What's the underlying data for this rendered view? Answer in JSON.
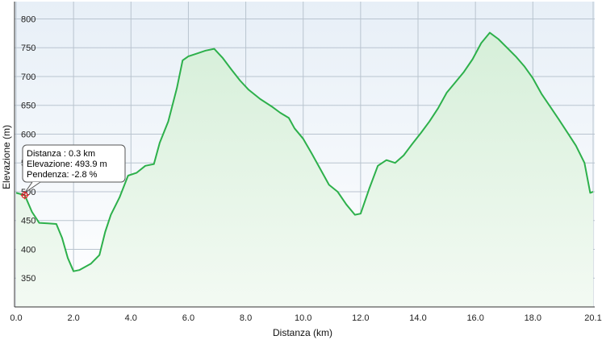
{
  "chart_data": {
    "type": "area",
    "xlabel": "Distanza  (km)",
    "ylabel": "Elevazione (m)",
    "xlim": [
      0,
      20.1
    ],
    "ylim": [
      300,
      830
    ],
    "x_ticks": [
      0.0,
      2.0,
      4.0,
      6.0,
      8.0,
      10.0,
      12.0,
      14.0,
      16.0,
      18.0,
      20.1
    ],
    "x_tick_labels": [
      "0.0",
      "2.0",
      "4.0",
      "6.0",
      "8.0",
      "10.0",
      "12.0",
      "14.0",
      "16.0",
      "18.0",
      "20.1"
    ],
    "y_ticks": [
      350,
      400,
      450,
      500,
      550,
      600,
      650,
      700,
      750,
      800
    ],
    "y_tick_labels": [
      "350",
      "400",
      "450",
      "500",
      "550",
      "600",
      "650",
      "700",
      "750",
      "800"
    ],
    "grid": true,
    "line_color": "#2db04b",
    "series": [
      {
        "x": [
          0.0,
          0.3,
          0.55,
          0.8,
          1.1,
          1.4,
          1.6,
          1.8,
          2.0,
          2.2,
          2.6,
          2.9,
          3.1,
          3.3,
          3.6,
          3.9,
          4.2,
          4.5,
          4.8,
          5.0,
          5.3,
          5.6,
          5.8,
          6.0,
          6.3,
          6.6,
          6.9,
          7.2,
          7.5,
          7.8,
          8.1,
          8.5,
          8.9,
          9.2,
          9.5,
          9.7,
          10.0,
          10.3,
          10.6,
          10.9,
          11.2,
          11.5,
          11.8,
          12.0,
          12.3,
          12.6,
          12.9,
          13.2,
          13.5,
          13.8,
          14.1,
          14.4,
          14.7,
          15.0,
          15.3,
          15.6,
          15.9,
          16.2,
          16.5,
          16.8,
          17.1,
          17.4,
          17.7,
          18.0,
          18.3,
          18.6,
          18.9,
          19.2,
          19.5,
          19.8,
          20.0,
          20.1
        ],
        "y": [
          498,
          493.9,
          465,
          446,
          445,
          444,
          420,
          385,
          362,
          364,
          375,
          390,
          430,
          460,
          490,
          528,
          533,
          545,
          548,
          585,
          622,
          680,
          728,
          735,
          740,
          745,
          748,
          732,
          712,
          693,
          677,
          661,
          648,
          637,
          628,
          610,
          592,
          566,
          539,
          512,
          500,
          478,
          460,
          462,
          505,
          545,
          555,
          550,
          563,
          583,
          602,
          622,
          645,
          672,
          690,
          708,
          730,
          758,
          776,
          765,
          750,
          735,
          718,
          697,
          670,
          648,
          626,
          603,
          580,
          550,
          498,
          500
        ]
      }
    ],
    "tooltip": {
      "lines": [
        "Distanza : 0.3 km",
        "Elevazione: 493.9 m",
        "Pendenza: -2.8 %"
      ],
      "x": 0.3,
      "y": 493.9
    }
  }
}
